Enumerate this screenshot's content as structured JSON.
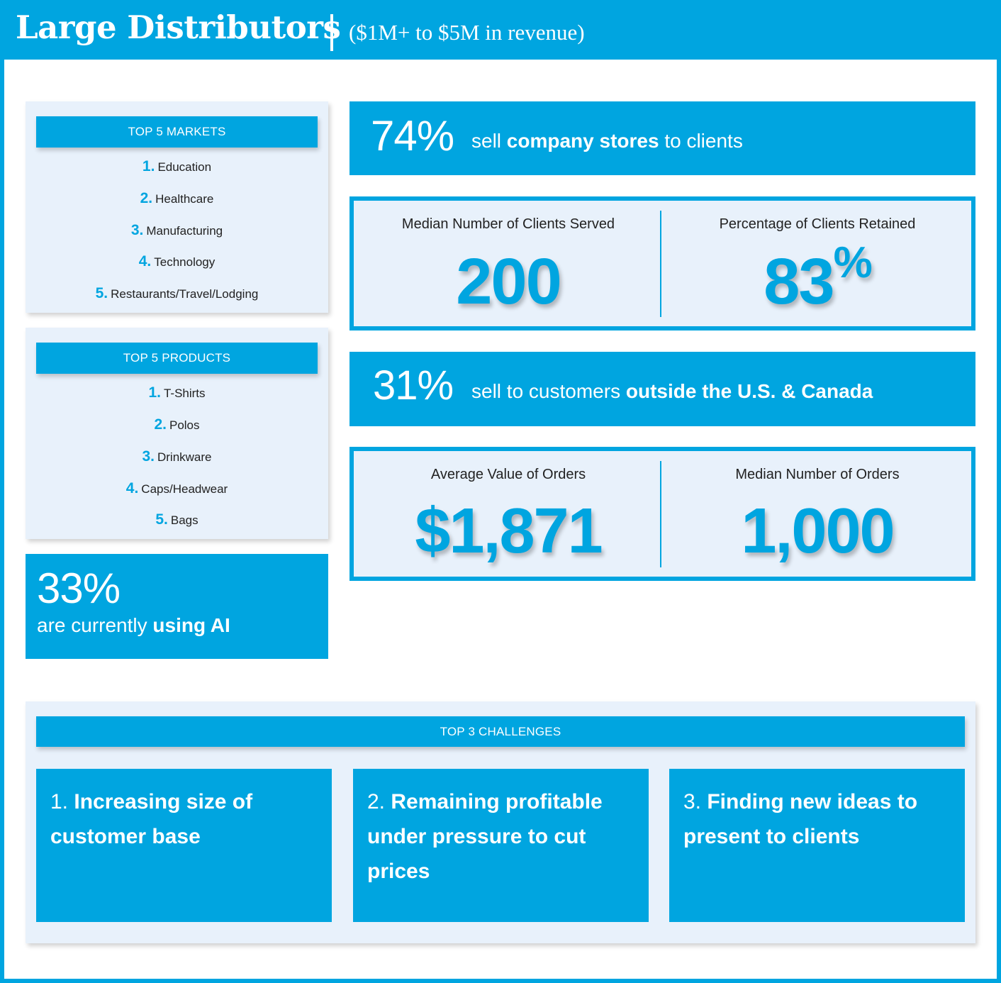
{
  "header": {
    "title": "Large Distributors",
    "subtitle": "($1M+ to $5M in revenue)"
  },
  "markets": {
    "heading": "TOP 5 MARKETS",
    "items": [
      {
        "num": "1.",
        "label": "Education"
      },
      {
        "num": "2.",
        "label": "Healthcare"
      },
      {
        "num": "3.",
        "label": "Manufacturing"
      },
      {
        "num": "4.",
        "label": "Technology"
      },
      {
        "num": "5.",
        "label": "Restaurants/Travel/Lodging"
      }
    ]
  },
  "products": {
    "heading": "TOP 5 PRODUCTS",
    "items": [
      {
        "num": "1.",
        "label": "T-Shirts"
      },
      {
        "num": "2.",
        "label": "Polos"
      },
      {
        "num": "3.",
        "label": "Drinkware"
      },
      {
        "num": "4.",
        "label": "Caps/Headwear"
      },
      {
        "num": "5.",
        "label": "Bags"
      }
    ]
  },
  "ai": {
    "pct": "33%",
    "text": "are currently ",
    "bold": "using AI"
  },
  "company_stores": {
    "pct": "74%",
    "pre": "sell ",
    "bold": "company stores",
    "post": " to clients"
  },
  "clients": {
    "served_label": "Median Number of Clients Served",
    "served_value": "200",
    "retained_label": "Percentage of Clients Retained",
    "retained_value": "83",
    "retained_unit": "%"
  },
  "outside": {
    "pct": "31%",
    "pre": "sell to customers ",
    "bold": "outside the U.S. & Canada"
  },
  "orders": {
    "avg_label": "Average Value of Orders",
    "avg_value": "$1,871",
    "median_label": "Median Number of Orders",
    "median_value": "1,000"
  },
  "challenges": {
    "heading": "TOP 3 CHALLENGES",
    "items": [
      {
        "num": "1. ",
        "text": "Increasing size of customer base"
      },
      {
        "num": "2. ",
        "text": "Remaining profitable under pressure to cut prices"
      },
      {
        "num": "3. ",
        "text": "Finding new ideas to present to clients"
      }
    ]
  },
  "colors": {
    "accent": "#00a5e0",
    "panel": "#e8f1fb"
  }
}
